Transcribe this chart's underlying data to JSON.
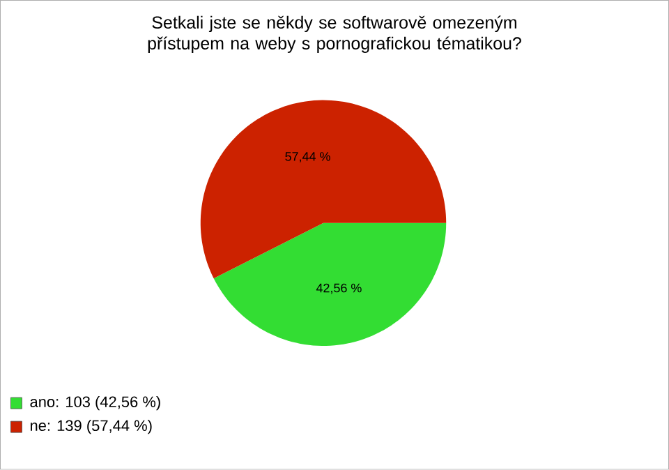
{
  "chart_data": {
    "type": "pie",
    "title": "Setkali jste se někdy se softwarově omezeným přístupem na weby s pornografickou tématikou?",
    "categories": [
      "ano: 103 (42,56 %)",
      "ne: 139 (57,44 %)"
    ],
    "values": [
      42.56,
      57.44
    ],
    "colors": [
      "#33dd33",
      "#cc2200"
    ],
    "value_labels": [
      "42,56 %",
      "57,44 %"
    ],
    "legend": "bottom left"
  }
}
